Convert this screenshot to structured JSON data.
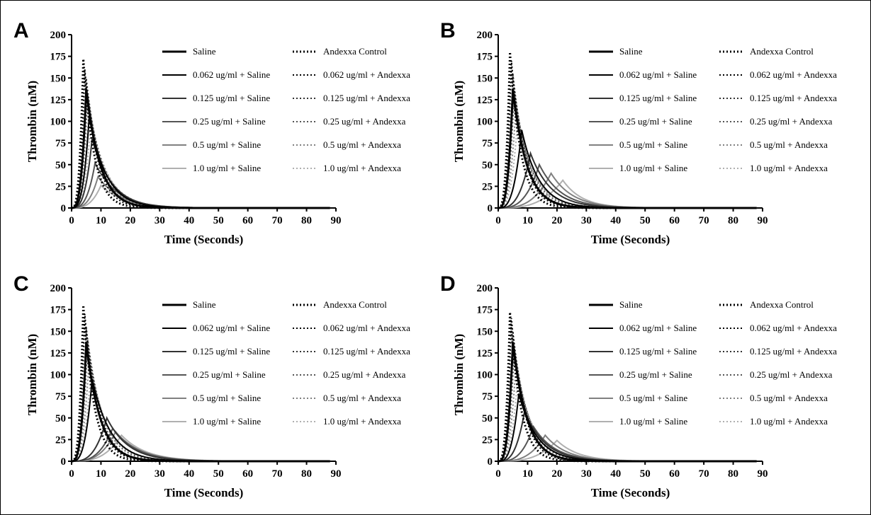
{
  "chart_data": [
    {
      "panel": "A",
      "type": "line",
      "xlabel": "Time (Seconds)",
      "ylabel": "Thrombin (nM)",
      "xlim": [
        0,
        90
      ],
      "ylim": [
        0,
        200
      ],
      "xticks": [
        "0",
        "10",
        "20",
        "30",
        "40",
        "50",
        "60",
        "70",
        "80",
        "90"
      ],
      "yticks": [
        "0",
        "25",
        "50",
        "75",
        "100",
        "125",
        "150",
        "175",
        "200"
      ],
      "legend_position": "top-right",
      "series": [
        {
          "name": "Saline",
          "style": "solid",
          "color": "#000000",
          "width": 3,
          "peak_x": 5,
          "peak_y": 137,
          "rise": 2.5,
          "tail": 18
        },
        {
          "name": "Andexxa Control",
          "style": "dotted",
          "color": "#000000",
          "width": 3,
          "peak_x": 4,
          "peak_y": 172,
          "rise": 2,
          "tail": 14
        },
        {
          "name": "0.062 ug/ml + Saline",
          "style": "solid",
          "color": "#000000",
          "width": 2,
          "peak_x": 6,
          "peak_y": 105,
          "rise": 3,
          "tail": 22
        },
        {
          "name": "0.062 ug/ml + Andexxa",
          "style": "dotted",
          "color": "#000000",
          "width": 2,
          "peak_x": 4.5,
          "peak_y": 160,
          "rise": 2.2,
          "tail": 16
        },
        {
          "name": "0.125 ug/ml + Saline",
          "style": "solid",
          "color": "#333333",
          "width": 2,
          "peak_x": 7,
          "peak_y": 80,
          "rise": 3.5,
          "tail": 25
        },
        {
          "name": "0.125 ug/ml + Andexxa",
          "style": "dotted",
          "color": "#333333",
          "width": 2,
          "peak_x": 5,
          "peak_y": 150,
          "rise": 2.4,
          "tail": 18
        },
        {
          "name": "0.25 ug/ml + Saline",
          "style": "solid",
          "color": "#555555",
          "width": 2,
          "peak_x": 8,
          "peak_y": 52,
          "rise": 4,
          "tail": 28
        },
        {
          "name": "0.25 ug/ml + Andexxa",
          "style": "dotted",
          "color": "#555555",
          "width": 2,
          "peak_x": 5.5,
          "peak_y": 130,
          "rise": 2.6,
          "tail": 20
        },
        {
          "name": "0.5 ug/ml + Saline",
          "style": "solid",
          "color": "#808080",
          "width": 2,
          "peak_x": 9,
          "peak_y": 36,
          "rise": 4.5,
          "tail": 30
        },
        {
          "name": "0.5 ug/ml + Andexxa",
          "style": "dotted",
          "color": "#808080",
          "width": 2,
          "peak_x": 6,
          "peak_y": 115,
          "rise": 2.8,
          "tail": 22
        },
        {
          "name": "1.0 ug/ml + Saline",
          "style": "solid",
          "color": "#b0b0b0",
          "width": 2,
          "peak_x": 10,
          "peak_y": 26,
          "rise": 5,
          "tail": 32
        },
        {
          "name": "1.0 ug/ml + Andexxa",
          "style": "dotted",
          "color": "#b0b0b0",
          "width": 2,
          "peak_x": 6.5,
          "peak_y": 95,
          "rise": 3,
          "tail": 24
        }
      ]
    },
    {
      "panel": "B",
      "type": "line",
      "xlabel": "Time (Seconds)",
      "ylabel": "Thrombin (nM)",
      "xlim": [
        0,
        90
      ],
      "ylim": [
        0,
        200
      ],
      "xticks": [
        "0",
        "10",
        "20",
        "30",
        "40",
        "50",
        "60",
        "70",
        "80",
        "90"
      ],
      "yticks": [
        "0",
        "25",
        "50",
        "75",
        "100",
        "125",
        "150",
        "175",
        "200"
      ],
      "legend_position": "top-right",
      "series": [
        {
          "name": "Saline",
          "style": "solid",
          "color": "#000000",
          "width": 3,
          "peak_x": 5,
          "peak_y": 137,
          "rise": 2.5,
          "tail": 18
        },
        {
          "name": "Andexxa Control",
          "style": "dotted",
          "color": "#000000",
          "width": 3,
          "peak_x": 4,
          "peak_y": 180,
          "rise": 2,
          "tail": 14
        },
        {
          "name": "0.062 ug/ml + Saline",
          "style": "solid",
          "color": "#000000",
          "width": 2,
          "peak_x": 8,
          "peak_y": 90,
          "rise": 3.5,
          "tail": 24
        },
        {
          "name": "0.062 ug/ml + Andexxa",
          "style": "dotted",
          "color": "#000000",
          "width": 2,
          "peak_x": 4.5,
          "peak_y": 170,
          "rise": 2.2,
          "tail": 16
        },
        {
          "name": "0.125 ug/ml + Saline",
          "style": "solid",
          "color": "#333333",
          "width": 2,
          "peak_x": 11,
          "peak_y": 63,
          "rise": 5,
          "tail": 30
        },
        {
          "name": "0.125 ug/ml + Andexxa",
          "style": "dotted",
          "color": "#333333",
          "width": 2,
          "peak_x": 5,
          "peak_y": 155,
          "rise": 2.4,
          "tail": 18
        },
        {
          "name": "0.25 ug/ml + Saline",
          "style": "solid",
          "color": "#555555",
          "width": 2,
          "peak_x": 14,
          "peak_y": 50,
          "rise": 6.5,
          "tail": 34
        },
        {
          "name": "0.25 ug/ml + Andexxa",
          "style": "dotted",
          "color": "#555555",
          "width": 2,
          "peak_x": 5.5,
          "peak_y": 135,
          "rise": 2.6,
          "tail": 20
        },
        {
          "name": "0.5 ug/ml + Saline",
          "style": "solid",
          "color": "#808080",
          "width": 2,
          "peak_x": 18,
          "peak_y": 40,
          "rise": 8,
          "tail": 38
        },
        {
          "name": "0.5 ug/ml + Andexxa",
          "style": "dotted",
          "color": "#808080",
          "width": 2,
          "peak_x": 6,
          "peak_y": 115,
          "rise": 2.8,
          "tail": 22
        },
        {
          "name": "1.0 ug/ml + Saline",
          "style": "solid",
          "color": "#b0b0b0",
          "width": 2,
          "peak_x": 22,
          "peak_y": 32,
          "rise": 9.5,
          "tail": 40
        },
        {
          "name": "1.0 ug/ml + Andexxa",
          "style": "dotted",
          "color": "#b0b0b0",
          "width": 2,
          "peak_x": 6.5,
          "peak_y": 95,
          "rise": 3,
          "tail": 24
        }
      ]
    },
    {
      "panel": "C",
      "type": "line",
      "xlabel": "Time (Seconds)",
      "ylabel": "Thrombin (nM)",
      "xlim": [
        0,
        90
      ],
      "ylim": [
        0,
        200
      ],
      "xticks": [
        "0",
        "10",
        "20",
        "30",
        "40",
        "50",
        "60",
        "70",
        "80",
        "90"
      ],
      "yticks": [
        "0",
        "25",
        "50",
        "75",
        "100",
        "125",
        "150",
        "175",
        "200"
      ],
      "legend_position": "top-right",
      "series": [
        {
          "name": "Saline",
          "style": "solid",
          "color": "#000000",
          "width": 3,
          "peak_x": 5,
          "peak_y": 137,
          "rise": 2.5,
          "tail": 18
        },
        {
          "name": "Andexxa Control",
          "style": "dotted",
          "color": "#000000",
          "width": 3,
          "peak_x": 4,
          "peak_y": 180,
          "rise": 2,
          "tail": 14
        },
        {
          "name": "0.062 ug/ml + Saline",
          "style": "solid",
          "color": "#000000",
          "width": 2,
          "peak_x": 7,
          "peak_y": 95,
          "rise": 3.5,
          "tail": 24
        },
        {
          "name": "0.062 ug/ml + Andexxa",
          "style": "dotted",
          "color": "#000000",
          "width": 2,
          "peak_x": 4.5,
          "peak_y": 170,
          "rise": 2.2,
          "tail": 16
        },
        {
          "name": "0.125 ug/ml + Saline",
          "style": "solid",
          "color": "#333333",
          "width": 2,
          "peak_x": 12,
          "peak_y": 50,
          "rise": 6,
          "tail": 32
        },
        {
          "name": "0.125 ug/ml + Andexxa",
          "style": "dotted",
          "color": "#333333",
          "width": 2,
          "peak_x": 5,
          "peak_y": 155,
          "rise": 2.4,
          "tail": 18
        },
        {
          "name": "0.25 ug/ml + Saline",
          "style": "solid",
          "color": "#555555",
          "width": 2,
          "peak_x": 14,
          "peak_y": 38,
          "rise": 7,
          "tail": 36
        },
        {
          "name": "0.25 ug/ml + Andexxa",
          "style": "dotted",
          "color": "#555555",
          "width": 2,
          "peak_x": 5.5,
          "peak_y": 140,
          "rise": 2.6,
          "tail": 20
        },
        {
          "name": "0.5 ug/ml + Saline",
          "style": "solid",
          "color": "#808080",
          "width": 2,
          "peak_x": 15,
          "peak_y": 34,
          "rise": 7.5,
          "tail": 38
        },
        {
          "name": "0.5 ug/ml + Andexxa",
          "style": "dotted",
          "color": "#808080",
          "width": 2,
          "peak_x": 6,
          "peak_y": 120,
          "rise": 2.8,
          "tail": 22
        },
        {
          "name": "1.0 ug/ml + Saline",
          "style": "solid",
          "color": "#b0b0b0",
          "width": 2,
          "peak_x": 17,
          "peak_y": 30,
          "rise": 8.5,
          "tail": 40
        },
        {
          "name": "1.0 ug/ml + Andexxa",
          "style": "dotted",
          "color": "#b0b0b0",
          "width": 2,
          "peak_x": 6.5,
          "peak_y": 100,
          "rise": 3,
          "tail": 24
        }
      ]
    },
    {
      "panel": "D",
      "type": "line",
      "xlabel": "Time (Seconds)",
      "ylabel": "Thrombin (nM)",
      "xlim": [
        0,
        90
      ],
      "ylim": [
        0,
        200
      ],
      "xticks": [
        "0",
        "10",
        "20",
        "30",
        "40",
        "50",
        "60",
        "70",
        "80",
        "90"
      ],
      "yticks": [
        "0",
        "25",
        "50",
        "75",
        "100",
        "125",
        "150",
        "175",
        "200"
      ],
      "legend_position": "top-right",
      "series": [
        {
          "name": "Saline",
          "style": "solid",
          "color": "#000000",
          "width": 3,
          "peak_x": 5,
          "peak_y": 137,
          "rise": 2.5,
          "tail": 18
        },
        {
          "name": "Andexxa Control",
          "style": "dotted",
          "color": "#000000",
          "width": 3,
          "peak_x": 4,
          "peak_y": 172,
          "rise": 2,
          "tail": 14
        },
        {
          "name": "0.062 ug/ml + Saline",
          "style": "solid",
          "color": "#000000",
          "width": 2,
          "peak_x": 7,
          "peak_y": 78,
          "rise": 3.5,
          "tail": 24
        },
        {
          "name": "0.062 ug/ml + Andexxa",
          "style": "dotted",
          "color": "#000000",
          "width": 2,
          "peak_x": 4.5,
          "peak_y": 165,
          "rise": 2.2,
          "tail": 16
        },
        {
          "name": "0.125 ug/ml + Saline",
          "style": "solid",
          "color": "#333333",
          "width": 2,
          "peak_x": 9,
          "peak_y": 58,
          "rise": 4.5,
          "tail": 28
        },
        {
          "name": "0.125 ug/ml + Andexxa",
          "style": "dotted",
          "color": "#333333",
          "width": 2,
          "peak_x": 5,
          "peak_y": 150,
          "rise": 2.4,
          "tail": 18
        },
        {
          "name": "0.25 ug/ml + Saline",
          "style": "solid",
          "color": "#555555",
          "width": 2,
          "peak_x": 12,
          "peak_y": 40,
          "rise": 6,
          "tail": 32
        },
        {
          "name": "0.25 ug/ml + Andexxa",
          "style": "dotted",
          "color": "#555555",
          "width": 2,
          "peak_x": 5.5,
          "peak_y": 130,
          "rise": 2.6,
          "tail": 20
        },
        {
          "name": "0.5 ug/ml + Saline",
          "style": "solid",
          "color": "#808080",
          "width": 2,
          "peak_x": 16,
          "peak_y": 30,
          "rise": 7.5,
          "tail": 36
        },
        {
          "name": "0.5 ug/ml + Andexxa",
          "style": "dotted",
          "color": "#808080",
          "width": 2,
          "peak_x": 6,
          "peak_y": 110,
          "rise": 2.8,
          "tail": 22
        },
        {
          "name": "1.0 ug/ml + Saline",
          "style": "solid",
          "color": "#b0b0b0",
          "width": 2,
          "peak_x": 20,
          "peak_y": 24,
          "rise": 9,
          "tail": 40
        },
        {
          "name": "1.0 ug/ml + Andexxa",
          "style": "dotted",
          "color": "#b0b0b0",
          "width": 2,
          "peak_x": 6.5,
          "peak_y": 90,
          "rise": 3,
          "tail": 24
        }
      ]
    }
  ]
}
